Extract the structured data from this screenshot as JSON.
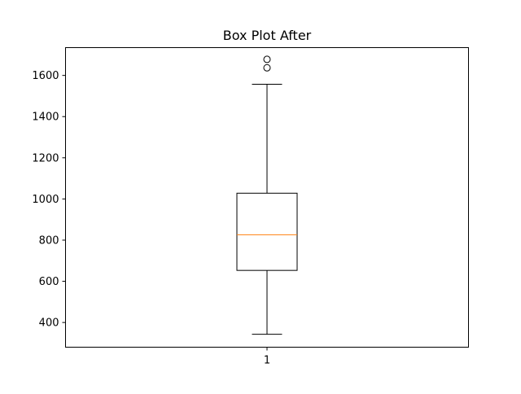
{
  "chart_data": {
    "type": "box",
    "title": "Box Plot After",
    "xlabel": "",
    "ylabel": "",
    "categories": [
      "1"
    ],
    "ylim": [
      280,
      1735
    ],
    "yticks": [
      400,
      600,
      800,
      1000,
      1200,
      1400,
      1600
    ],
    "ytick_labels": [
      "400",
      "600",
      "800",
      "1000",
      "1200",
      "1400",
      "1600"
    ],
    "grid": false,
    "boxes": [
      {
        "label": "1",
        "whisker_low": 343,
        "q1": 653,
        "median": 826,
        "q3": 1028,
        "whisker_high": 1557,
        "outliers": [
          1637,
          1678
        ]
      }
    ],
    "colors": {
      "box": "#000000",
      "median": "#ff7f0e",
      "whisker": "#000000",
      "outlier": "#000000"
    }
  }
}
